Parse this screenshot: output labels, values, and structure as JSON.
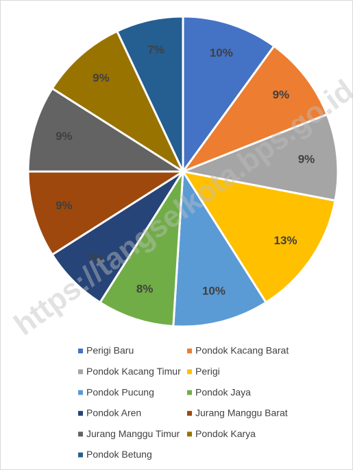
{
  "chart_data": {
    "type": "pie",
    "categories": [
      "Perigi Baru",
      "Pondok Kacang Barat",
      "Pondok Kacang Timur",
      "Perigi",
      "Pondok Pucung",
      "Pondok Jaya",
      "Pondok Aren",
      "Jurang Manggu Barat",
      "Jurang Manggu Timur",
      "Pondok Karya",
      "Pondok Betung"
    ],
    "values": [
      10,
      9,
      9,
      13,
      10,
      8,
      7,
      9,
      9,
      9,
      7
    ],
    "value_labels": [
      "10%",
      "9%",
      "9%",
      "13%",
      "10%",
      "8%",
      "7%",
      "9%",
      "9%",
      "9%",
      "7%"
    ],
    "colors": [
      "#4472c4",
      "#ed7d31",
      "#a5a5a5",
      "#ffc000",
      "#5b9bd5",
      "#70ad47",
      "#264478",
      "#9e480e",
      "#636363",
      "#997300",
      "#255e91"
    ],
    "legend": "bottom",
    "watermark": "https://tangselkota.bps.go.id"
  }
}
